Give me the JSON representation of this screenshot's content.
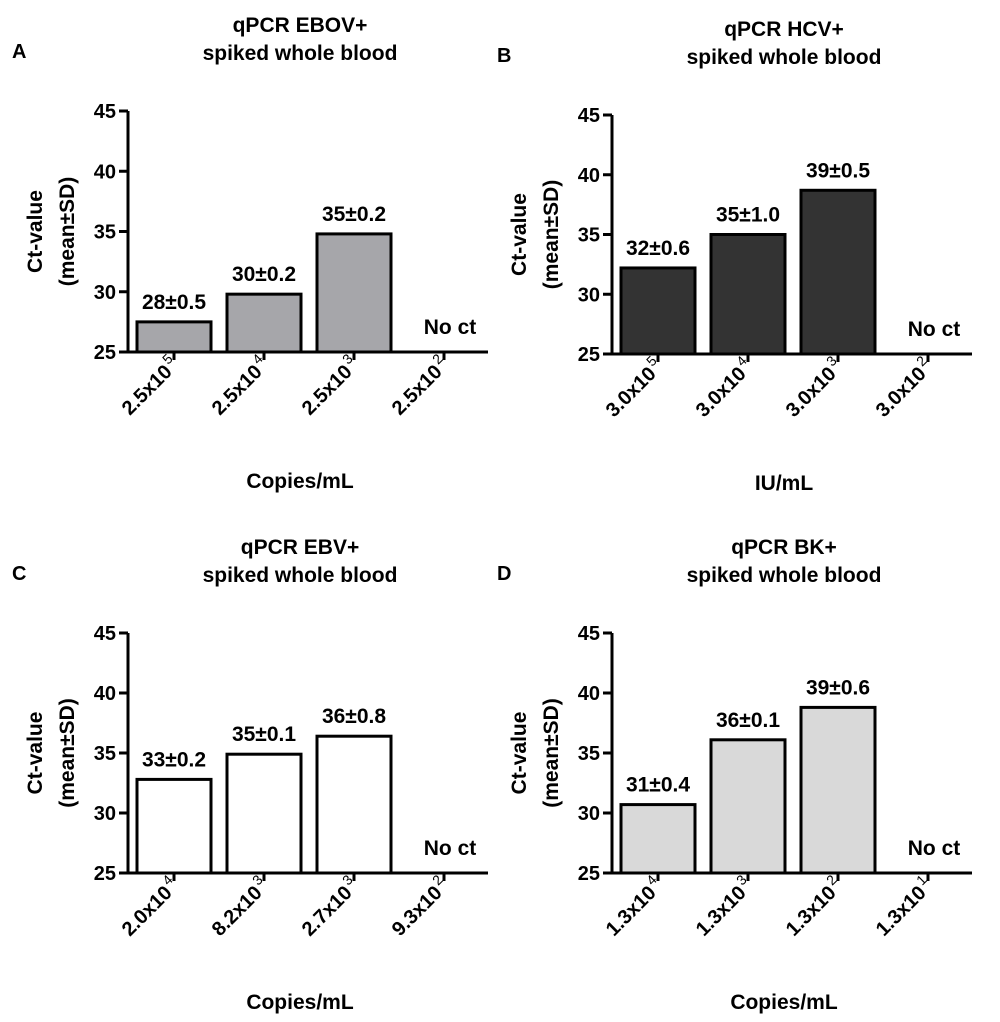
{
  "chart_data": [
    {
      "panel": "A",
      "type": "bar",
      "title": [
        "qPCR EBOV+",
        "spiked whole blood"
      ],
      "ylabel": [
        "Ct-value",
        "(mean±SD)"
      ],
      "xlabel": "Copies/mL",
      "ylim": [
        25,
        45
      ],
      "yticks": [
        "25",
        "30",
        "35",
        "40",
        "45"
      ],
      "tick_values": [
        25,
        30,
        35,
        40,
        45
      ],
      "bar_color": "#a6a6aa",
      "categories": [
        {
          "base": "2.5x10",
          "exp": "5"
        },
        {
          "base": "2.5x10",
          "exp": "4"
        },
        {
          "base": "2.5x10",
          "exp": "3"
        },
        {
          "base": "2.5x10",
          "exp": "2"
        }
      ],
      "values": [
        27.5,
        29.8,
        34.8,
        null
      ],
      "labels": [
        "28±0.5",
        "30±0.2",
        "35±0.2",
        "No ct"
      ]
    },
    {
      "panel": "B",
      "type": "bar",
      "title": [
        "qPCR HCV+",
        "spiked whole blood"
      ],
      "ylabel": [
        "Ct-value",
        "(mean±SD)"
      ],
      "xlabel": "IU/mL",
      "ylim": [
        25,
        45
      ],
      "yticks": [
        "25",
        "30",
        "35",
        "40",
        "45"
      ],
      "tick_values": [
        25,
        30,
        35,
        40,
        45
      ],
      "bar_color": "#333333",
      "categories": [
        {
          "base": "3.0x10",
          "exp": "5"
        },
        {
          "base": "3.0x10",
          "exp": "4"
        },
        {
          "base": "3.0x10",
          "exp": "3"
        },
        {
          "base": "3.0x10",
          "exp": "2"
        }
      ],
      "values": [
        32.2,
        35.0,
        38.7,
        null
      ],
      "labels": [
        "32±0.6",
        "35±1.0",
        "39±0.5",
        "No ct"
      ]
    },
    {
      "panel": "C",
      "type": "bar",
      "title": [
        "qPCR EBV+",
        "spiked whole blood"
      ],
      "ylabel": [
        "Ct-value",
        "(mean±SD)"
      ],
      "xlabel": "Copies/mL",
      "ylim": [
        25,
        45
      ],
      "yticks": [
        "25",
        "30",
        "35",
        "40",
        "45"
      ],
      "tick_values": [
        25,
        30,
        35,
        40,
        45
      ],
      "bar_color": "#ffffff",
      "categories": [
        {
          "base": "2.0x10",
          "exp": "4"
        },
        {
          "base": "8.2x10",
          "exp": "3"
        },
        {
          "base": "2.7x10",
          "exp": "3"
        },
        {
          "base": "9.3x10",
          "exp": "2"
        }
      ],
      "values": [
        32.8,
        34.9,
        36.4,
        null
      ],
      "labels": [
        "33±0.2",
        "35±0.1",
        "36±0.8",
        "No ct"
      ]
    },
    {
      "panel": "D",
      "type": "bar",
      "title": [
        "qPCR BK+",
        "spiked whole blood"
      ],
      "ylabel": [
        "Ct-value",
        "(mean±SD)"
      ],
      "xlabel": "Copies/mL",
      "ylim": [
        25,
        45
      ],
      "yticks": [
        "25",
        "30",
        "35",
        "40",
        "45"
      ],
      "tick_values": [
        25,
        30,
        35,
        40,
        45
      ],
      "bar_color": "#d9d9d9",
      "categories": [
        {
          "base": "1.3x10",
          "exp": "4"
        },
        {
          "base": "1.3x10",
          "exp": "3"
        },
        {
          "base": "1.3x10",
          "exp": "2"
        },
        {
          "base": "1.3x10",
          "exp": "1"
        }
      ],
      "values": [
        30.7,
        36.1,
        38.8,
        null
      ],
      "labels": [
        "31±0.4",
        "36±0.1",
        "39±0.6",
        "No ct"
      ]
    }
  ]
}
